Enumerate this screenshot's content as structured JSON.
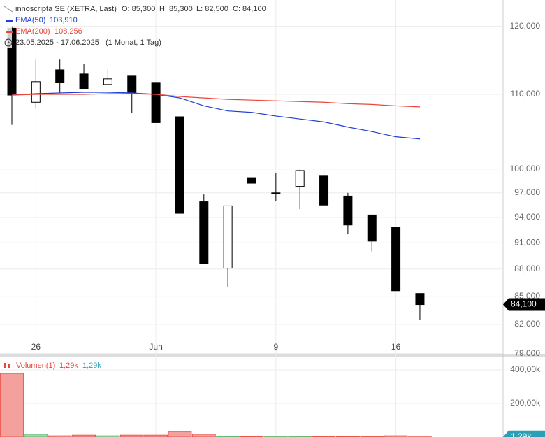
{
  "chart_data": [
    {
      "type": "candlestick",
      "title": "innoscripta SE (XETRA, Last)",
      "header_stats": [
        "O: 85,300",
        "H: 85,300",
        "L: 82,500",
        "C: 84,100"
      ],
      "date_range": "23.05.2025 - 17.06.2025",
      "interval": "(1 Monat, 1 Tag)",
      "categories": [
        null,
        "26",
        null,
        null,
        null,
        null,
        "Jun",
        null,
        null,
        null,
        null,
        "9",
        null,
        null,
        null,
        null,
        "16",
        null
      ],
      "open": [
        119700,
        108900,
        113500,
        112900,
        111400,
        112700,
        111700,
        106900,
        95900,
        88100,
        98900,
        97000,
        97800,
        99100,
        96600,
        94300,
        92800,
        85300
      ],
      "high": [
        120000,
        115000,
        115000,
        114400,
        113700,
        112700,
        111700,
        106900,
        96800,
        95400,
        99900,
        99500,
        99900,
        99800,
        97000,
        94300,
        92800,
        85300
      ],
      "low": [
        105800,
        108000,
        110200,
        110800,
        111400,
        107400,
        106100,
        94500,
        88600,
        86000,
        95200,
        96000,
        95000,
        95500,
        92000,
        90000,
        85600,
        82500
      ],
      "close": [
        109900,
        111800,
        111700,
        110800,
        112200,
        110100,
        106100,
        94500,
        88600,
        95400,
        98200,
        97000,
        99800,
        95500,
        93100,
        91200,
        85600,
        84100
      ],
      "up_color": "#ffffff",
      "down_color": "#000000",
      "series": [
        {
          "name": "EMA(50)",
          "value_label": "103,910",
          "color": "#1f3fd6",
          "values": [
            109900,
            110100,
            110200,
            110300,
            110300,
            110200,
            110000,
            109500,
            108400,
            107700,
            107500,
            107000,
            106600,
            106200,
            105500,
            104900,
            104200,
            103910
          ]
        },
        {
          "name": "EMA(200)",
          "value_label": "108,256",
          "color": "#e8453c",
          "values": [
            109900,
            110000,
            110000,
            110000,
            110100,
            110100,
            110000,
            109700,
            109500,
            109300,
            109200,
            109100,
            109000,
            108900,
            108700,
            108600,
            108400,
            108256
          ]
        }
      ],
      "last_value": 84100,
      "last_value_label": "84,100",
      "log_scale": true,
      "ylim": [
        78900,
        124100
      ],
      "yticks": [
        {
          "value": 79000,
          "label": "79,000"
        },
        {
          "value": 82000,
          "label": "82,000"
        },
        {
          "value": 85000,
          "label": "85,000"
        },
        {
          "value": 88000,
          "label": "88,000"
        },
        {
          "value": 91000,
          "label": "91,000"
        },
        {
          "value": 94000,
          "label": "94,000"
        },
        {
          "value": 97000,
          "label": "97,000"
        },
        {
          "value": 100000,
          "label": "100,000"
        },
        {
          "value": 110000,
          "label": "110,000"
        },
        {
          "value": 120000,
          "label": "120,000"
        }
      ],
      "grid": true
    },
    {
      "type": "bar",
      "title": "Volumen(1)",
      "legend_values": [
        "1,29k",
        "1,29k"
      ],
      "values": [
        379,
        17,
        8,
        12,
        8,
        12,
        12,
        33,
        17,
        4,
        4,
        2,
        4,
        4,
        4,
        2,
        8,
        1.29
      ],
      "colors": [
        "#f4a09c",
        "#9fd8a8",
        "#f4a09c",
        "#f4a09c",
        "#9fd8a8",
        "#f4a09c",
        "#f4a09c",
        "#f4a09c",
        "#f4a09c",
        "#9fd8a8",
        "#f4a09c",
        "#9fd8a8",
        "#9fd8a8",
        "#f4a09c",
        "#f4a09c",
        "#f4a09c",
        "#f4a09c",
        "#f4a09c"
      ],
      "last_value_label": "1,29k",
      "ylim": [
        0,
        475
      ],
      "yticks": [
        {
          "value": 200,
          "label": "200,00k"
        },
        {
          "value": 400,
          "label": "400,00k"
        }
      ],
      "grid": true
    }
  ]
}
